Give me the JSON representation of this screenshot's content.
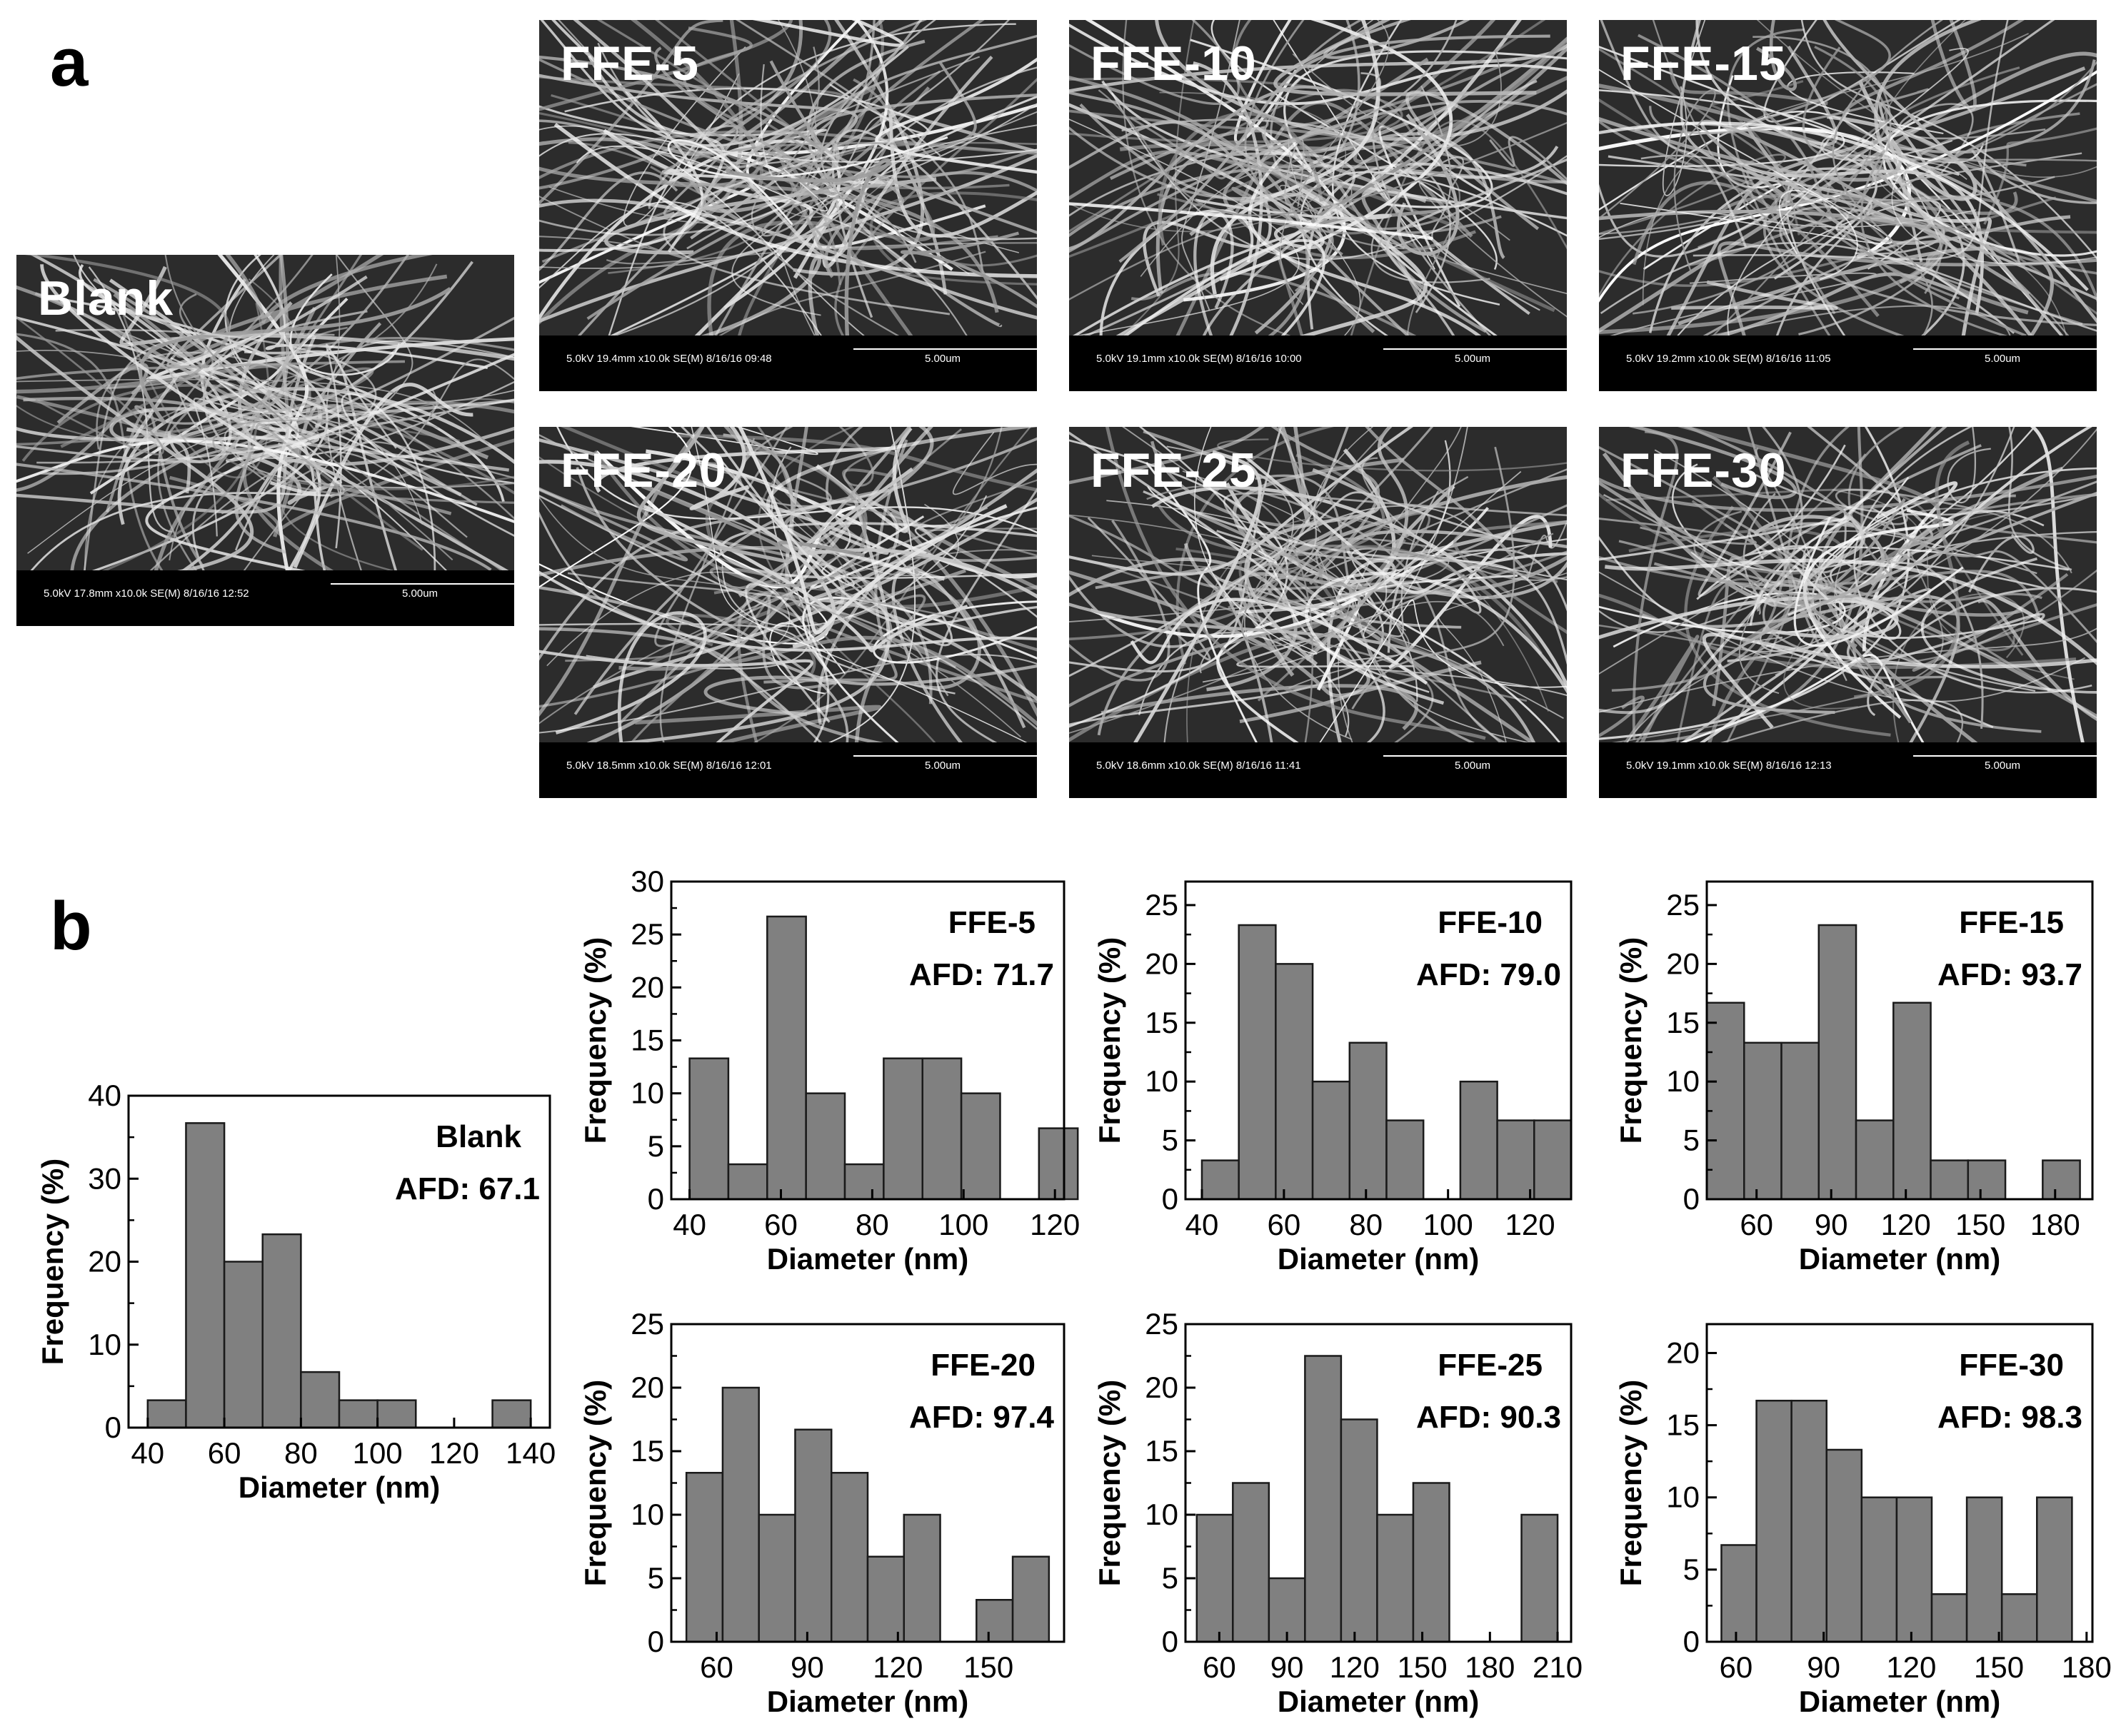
{
  "panel_a": {
    "letter": "a",
    "images": [
      {
        "label": "Blank",
        "info": "5.0kV 17.8mm x10.0k SE(M) 8/16/16 12:52",
        "scale": "5.00um"
      },
      {
        "label": "FFE-5",
        "info": "5.0kV 19.4mm x10.0k SE(M) 8/16/16 09:48",
        "scale": "5.00um"
      },
      {
        "label": "FFE-10",
        "info": "5.0kV 19.1mm x10.0k SE(M) 8/16/16 10:00",
        "scale": "5.00um"
      },
      {
        "label": "FFE-15",
        "info": "5.0kV 19.2mm x10.0k SE(M) 8/16/16 11:05",
        "scale": "5.00um"
      },
      {
        "label": "FFE-20",
        "info": "5.0kV 18.5mm x10.0k SE(M) 8/16/16 12:01",
        "scale": "5.00um"
      },
      {
        "label": "FFE-25",
        "info": "5.0kV 18.6mm x10.0k SE(M) 8/16/16 11:41",
        "scale": "5.00um"
      },
      {
        "label": "FFE-30",
        "info": "5.0kV 19.1mm x10.0k SE(M) 8/16/16 12:13",
        "scale": "5.00um"
      }
    ]
  },
  "panel_b": {
    "letter": "b"
  },
  "chart_data": [
    {
      "type": "bar",
      "name": "Blank",
      "afd_label": "AFD:",
      "afd": "67.1",
      "xlabel": "Diameter (nm)",
      "ylabel": "Frequency (%)",
      "bin_start": 40,
      "bin_width": 10,
      "values": [
        3.3,
        36.7,
        20,
        23.3,
        6.7,
        3.3,
        3.3,
        0,
        0,
        3.3
      ],
      "xlim": [
        35,
        145
      ],
      "ylim": [
        0,
        40
      ],
      "xticks": [
        40,
        60,
        80,
        100,
        120,
        140
      ],
      "yticks": [
        0,
        10,
        20,
        30,
        40
      ]
    },
    {
      "type": "bar",
      "name": "FFE-5",
      "afd_label": "AFD:",
      "afd": "71.7",
      "xlabel": "Diameter (nm)",
      "ylabel": "Frequency (%)",
      "bin_start": 40,
      "bin_width": 8.5,
      "values": [
        13.3,
        3.3,
        26.7,
        10,
        3.3,
        13.3,
        13.3,
        10,
        0,
        6.7
      ],
      "xlim": [
        36,
        122
      ],
      "ylim": [
        0,
        30
      ],
      "xticks": [
        40,
        60,
        80,
        100,
        120
      ],
      "yticks": [
        0,
        5,
        10,
        15,
        20,
        25,
        30
      ]
    },
    {
      "type": "bar",
      "name": "FFE-10",
      "afd_label": "AFD:",
      "afd": "79.0",
      "xlabel": "Diameter (nm)",
      "ylabel": "Frequency (%)",
      "bin_start": 40,
      "bin_width": 9,
      "values": [
        3.3,
        23.3,
        20,
        10,
        13.3,
        6.7,
        0,
        10,
        6.7,
        6.7
      ],
      "xlim": [
        36,
        130
      ],
      "ylim": [
        0,
        27
      ],
      "xticks": [
        40,
        60,
        80,
        100,
        120
      ],
      "yticks": [
        0,
        5,
        10,
        15,
        20,
        25
      ]
    },
    {
      "type": "bar",
      "name": "FFE-15",
      "afd_label": "AFD:",
      "afd": "93.7",
      "xlabel": "Diameter (nm)",
      "ylabel": "Frequency (%)",
      "bin_start": 40,
      "bin_width": 15,
      "values": [
        16.7,
        13.3,
        13.3,
        23.3,
        6.7,
        16.7,
        3.3,
        3.3,
        0,
        3.3
      ],
      "xlim": [
        40,
        195
      ],
      "ylim": [
        0,
        27
      ],
      "xticks": [
        60,
        90,
        120,
        150,
        180
      ],
      "yticks": [
        0,
        5,
        10,
        15,
        20,
        25
      ]
    },
    {
      "type": "bar",
      "name": "FFE-20",
      "afd_label": "AFD:",
      "afd": "97.4",
      "xlabel": "Diameter (nm)",
      "ylabel": "Frequency (%)",
      "bin_start": 50,
      "bin_width": 12,
      "values": [
        13.3,
        20,
        10,
        16.7,
        13.3,
        6.7,
        10,
        0,
        3.3,
        6.7
      ],
      "xlim": [
        45,
        175
      ],
      "ylim": [
        0,
        25
      ],
      "xticks": [
        60,
        90,
        120,
        150
      ],
      "yticks": [
        0,
        5,
        10,
        15,
        20,
        25
      ]
    },
    {
      "type": "bar",
      "name": "FFE-25",
      "afd_label": "AFD:",
      "afd": "90.3",
      "xlabel": "Diameter (nm)",
      "ylabel": "Frequency (%)",
      "bin_start": 50,
      "bin_width": 16,
      "values": [
        10,
        12.5,
        5,
        22.5,
        17.5,
        10,
        12.5,
        0,
        0,
        10
      ],
      "xlim": [
        45,
        216
      ],
      "ylim": [
        0,
        25
      ],
      "xticks": [
        60,
        90,
        120,
        150,
        180,
        210
      ],
      "yticks": [
        0,
        5,
        10,
        15,
        20,
        25
      ]
    },
    {
      "type": "bar",
      "name": "FFE-30",
      "afd_label": "AFD:",
      "afd": "98.3",
      "xlabel": "Diameter (nm)",
      "ylabel": "Frequency (%)",
      "bin_start": 55,
      "bin_width": 12,
      "values": [
        6.7,
        16.7,
        16.7,
        13.3,
        10,
        10,
        3.3,
        10,
        3.3,
        10
      ],
      "xlim": [
        50,
        182
      ],
      "ylim": [
        0,
        22
      ],
      "xticks": [
        60,
        90,
        120,
        150,
        180
      ],
      "yticks": [
        0,
        5,
        10,
        15,
        20
      ]
    }
  ]
}
